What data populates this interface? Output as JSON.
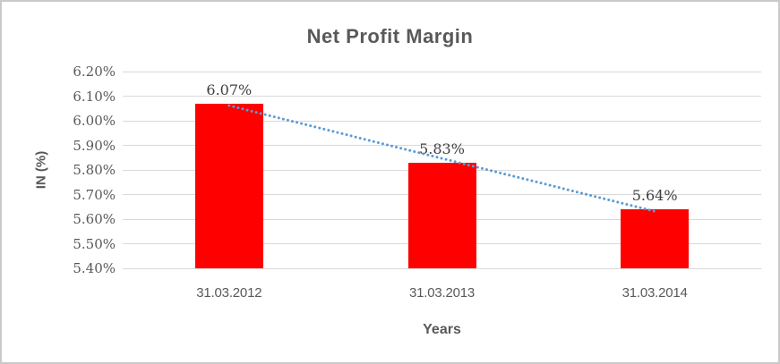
{
  "window": {
    "background": "#ffffff",
    "border_color": "#c9c9c9"
  },
  "chart_data": {
    "type": "bar",
    "title": "Net Profit Margin",
    "categories": [
      "31.03.2012",
      "31.03.2013",
      "31.03.2014"
    ],
    "values": [
      6.07,
      5.83,
      5.64
    ],
    "data_labels": [
      "6.07%",
      "5.83%",
      "5.64%"
    ],
    "xlabel": "Years",
    "ylabel": "IN (%)",
    "ylim": [
      5.4,
      6.2
    ],
    "ytick_step": 0.1,
    "yticks": [
      "6.20%",
      "6.10%",
      "6.00%",
      "5.90%",
      "5.80%",
      "5.70%",
      "5.60%",
      "5.50%",
      "5.40%"
    ],
    "grid": true,
    "legend": "none",
    "bar_color": "#ff0000",
    "gridline_color": "#d9d9d9",
    "axis_text_color": "#595959",
    "data_label_color": "#404040",
    "title_color": "#595959",
    "trendline": {
      "type": "linear",
      "style": "round-dot",
      "color": "#5b9bd5"
    }
  }
}
